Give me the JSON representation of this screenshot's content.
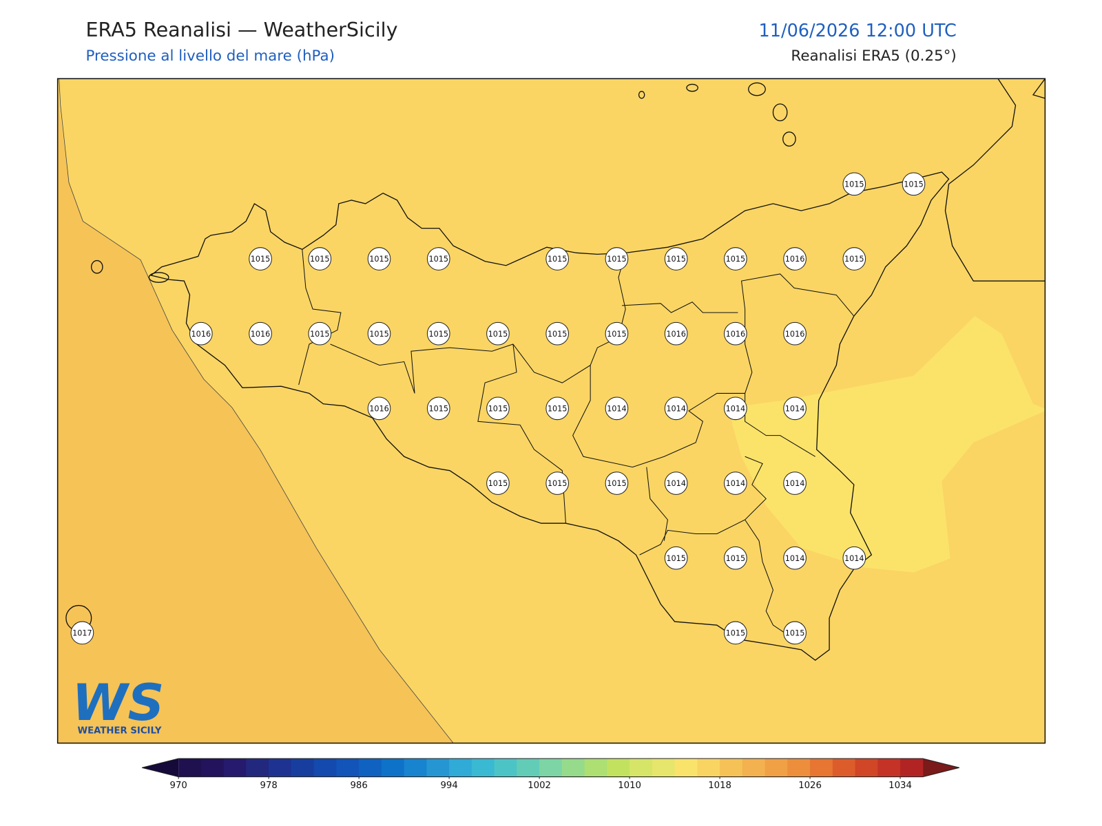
{
  "header": {
    "title": "ERA5 Reanalisi — WeatherSicily",
    "subtitle": "Pressione al livello del mare (hPa)",
    "datetime": "11/06/2026 12:00 UTC",
    "source": "Reanalisi ERA5 (0.25°)"
  },
  "stations": {
    "rows": [
      [
        null,
        null,
        null,
        null,
        null,
        null,
        null,
        null,
        null,
        null,
        null,
        null,
        null,
        1015,
        1015
      ],
      [
        null,
        null,
        null,
        1015,
        1015,
        1015,
        1015,
        null,
        1015,
        1015,
        1015,
        1015,
        1016,
        1015,
        null
      ],
      [
        null,
        null,
        1016,
        1016,
        1015,
        1015,
        1015,
        1015,
        1015,
        1015,
        1016,
        1016,
        1016,
        null,
        null
      ],
      [
        null,
        null,
        null,
        null,
        null,
        1016,
        1015,
        1015,
        1015,
        1014,
        1014,
        1014,
        1014,
        null,
        null
      ],
      [
        null,
        null,
        null,
        null,
        null,
        null,
        null,
        1015,
        1015,
        1015,
        1014,
        1014,
        1014,
        null,
        null
      ],
      [
        null,
        null,
        null,
        null,
        null,
        null,
        null,
        null,
        null,
        null,
        1015,
        1015,
        1014,
        1014,
        null
      ],
      [
        1017,
        null,
        null,
        null,
        null,
        null,
        null,
        null,
        null,
        null,
        null,
        1015,
        1015,
        null,
        null
      ]
    ]
  },
  "colorbar": {
    "lim": [
      970,
      1036
    ],
    "ticks": [
      970,
      978,
      986,
      994,
      1002,
      1010,
      1018,
      1026,
      1034
    ],
    "colors": [
      "#1f1050",
      "#23125c",
      "#261a6e",
      "#23287f",
      "#1e3391",
      "#173e9f",
      "#1449ad",
      "#1254b8",
      "#0f62c0",
      "#0d72c8",
      "#1883cf",
      "#2596d2",
      "#30aad6",
      "#3ab9d2",
      "#4cc4c6",
      "#63ccb7",
      "#7dd4a4",
      "#96da8c",
      "#addf73",
      "#c2e25f",
      "#d6e568",
      "#e6e56c",
      "#f9e36a",
      "#f9d463",
      "#f5c257",
      "#f3b14f",
      "#f0a045",
      "#ec8e3c",
      "#e67632",
      "#dc5d2b",
      "#d04627",
      "#c53326",
      "#b22424"
    ],
    "under": "#150a3a",
    "over": "#7a1a1a"
  },
  "logo": {
    "mark": "WS",
    "text": "WEATHER SICILY"
  }
}
